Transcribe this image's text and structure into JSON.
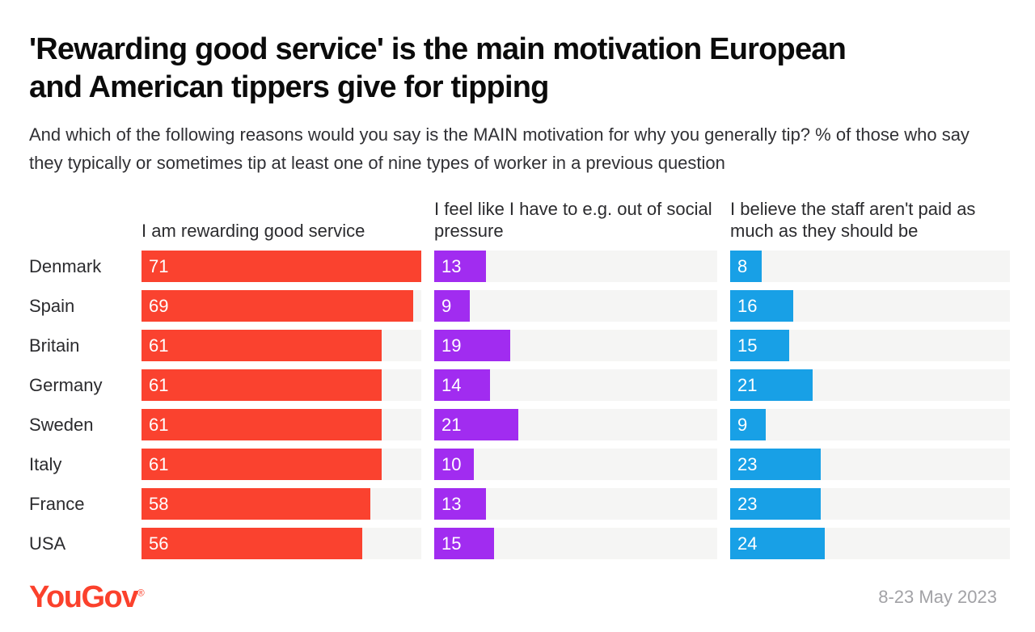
{
  "header": {
    "title": "'Rewarding good service' is the main motivation European and American tippers give for tipping",
    "subtitle": "And which of the following reasons would you say is the MAIN motivation for why you generally tip? % of those who say they typically or sometimes tip at least one of nine types of worker in a previous question"
  },
  "chart_data": {
    "type": "bar",
    "orientation": "horizontal",
    "unit": "%",
    "categories": [
      "Denmark",
      "Spain",
      "Britain",
      "Germany",
      "Sweden",
      "Italy",
      "France",
      "USA"
    ],
    "series": [
      {
        "name": "I am rewarding good service",
        "color": "#fa422f",
        "values": [
          71,
          69,
          61,
          61,
          61,
          61,
          58,
          56
        ]
      },
      {
        "name": "I feel like I have to e.g. out of social pressure",
        "color": "#a12cf0",
        "values": [
          13,
          9,
          19,
          14,
          21,
          10,
          13,
          15
        ]
      },
      {
        "name": "I believe the staff aren't paid as much as they should be",
        "color": "#18a0e6",
        "values": [
          8,
          16,
          15,
          21,
          9,
          23,
          23,
          24
        ]
      }
    ],
    "value_axis_max": 71,
    "track_color": "#f5f5f4",
    "data_labels": "inside-start, white",
    "grid": "off",
    "legend_position": "column headers above each series"
  },
  "footer": {
    "logo_text": "YouGov",
    "logo_registered": "®",
    "logo_color": "#fb412c",
    "date_range": "8-23 May 2023"
  }
}
